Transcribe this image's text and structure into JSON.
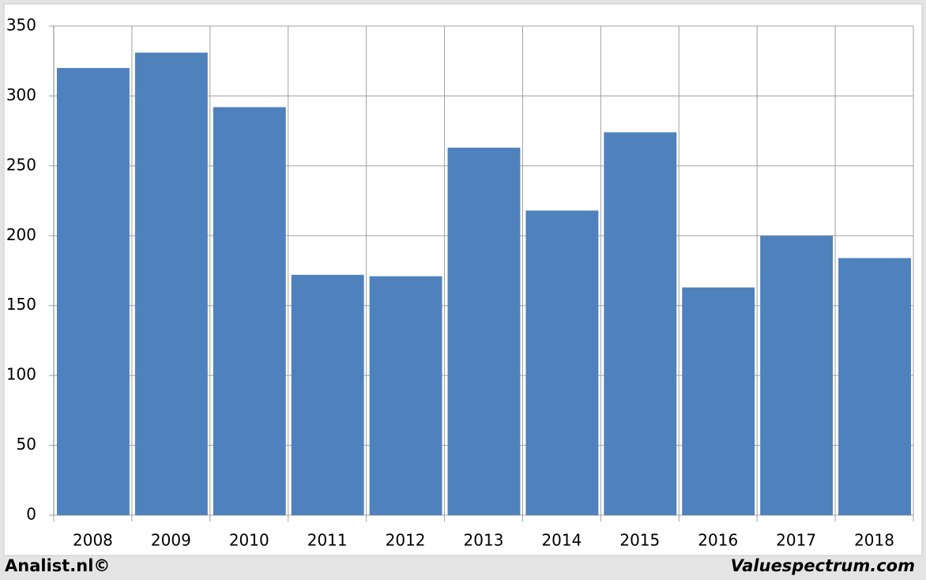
{
  "chart_data": {
    "type": "bar",
    "categories": [
      "2008",
      "2009",
      "2010",
      "2011",
      "2012",
      "2013",
      "2014",
      "2015",
      "2016",
      "2017",
      "2018"
    ],
    "values": [
      320,
      331,
      292,
      172,
      171,
      263,
      218,
      274,
      163,
      200,
      184
    ],
    "color": "#4f81bd",
    "ylim": [
      0,
      350
    ],
    "yticks": [
      0,
      50,
      100,
      150,
      200,
      250,
      300,
      350
    ],
    "grid": true
  },
  "footer": {
    "left": "Analist.nl©",
    "right": "Valuespectrum.com"
  }
}
